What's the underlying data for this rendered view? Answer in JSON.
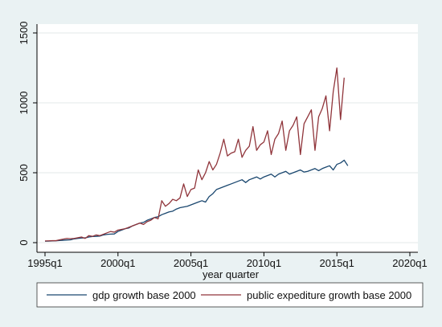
{
  "colors": {
    "background": "#eaf2f3",
    "plot_background": "#ffffff",
    "grid": "#e3e8ea",
    "series_gdp": "#1a476f",
    "series_expenditure": "#90353b",
    "axis": "#000000"
  },
  "chart_data": {
    "type": "line",
    "title": "",
    "xlabel": "year quarter",
    "ylabel": "",
    "xlim": [
      1995.0,
      2020.0
    ],
    "ylim": [
      0,
      1500
    ],
    "x_ticks": [
      1995,
      2000,
      2005,
      2010,
      2015,
      2020
    ],
    "x_tick_labels": [
      "1995q1",
      "2000q1",
      "2005q1",
      "2010q1",
      "2015q1",
      "2020q1"
    ],
    "y_ticks": [
      0,
      500,
      1000,
      1500
    ],
    "y_tick_labels": [
      "0",
      "500",
      "1000",
      "1500"
    ],
    "grid": true,
    "legend_position": "bottom",
    "x_start": "1995q1",
    "x_step": "quarter",
    "series": [
      {
        "name": "gdp growth base 2000",
        "color": "#1a476f",
        "values": [
          10,
          11,
          12,
          13,
          15,
          17,
          19,
          20,
          27,
          30,
          33,
          34,
          40,
          44,
          45,
          47,
          55,
          59,
          61,
          62,
          80,
          90,
          100,
          105,
          120,
          130,
          140,
          145,
          160,
          170,
          180,
          185,
          200,
          210,
          220,
          225,
          240,
          250,
          255,
          260,
          270,
          280,
          290,
          300,
          290,
          330,
          350,
          380,
          390,
          400,
          410,
          420,
          430,
          440,
          450,
          430,
          450,
          460,
          470,
          455,
          470,
          480,
          490,
          470,
          490,
          500,
          510,
          490,
          500,
          510,
          520,
          505,
          510,
          520,
          530,
          515,
          530,
          540,
          550,
          520,
          560,
          570,
          590,
          550
        ]
      },
      {
        "name": "public expediture growth base 2000",
        "color": "#90353b",
        "values": [
          12,
          13,
          14,
          14,
          20,
          25,
          30,
          28,
          30,
          35,
          40,
          30,
          50,
          45,
          55,
          50,
          60,
          70,
          80,
          75,
          90,
          95,
          100,
          110,
          120,
          130,
          140,
          130,
          150,
          160,
          180,
          170,
          300,
          260,
          280,
          310,
          300,
          320,
          420,
          330,
          380,
          390,
          520,
          450,
          500,
          580,
          520,
          560,
          640,
          740,
          620,
          640,
          650,
          740,
          610,
          660,
          690,
          830,
          660,
          700,
          720,
          800,
          630,
          740,
          780,
          870,
          660,
          800,
          840,
          900,
          630,
          850,
          900,
          950,
          660,
          900,
          960,
          1050,
          800,
          1080,
          1250,
          880,
          1180
        ]
      }
    ]
  }
}
